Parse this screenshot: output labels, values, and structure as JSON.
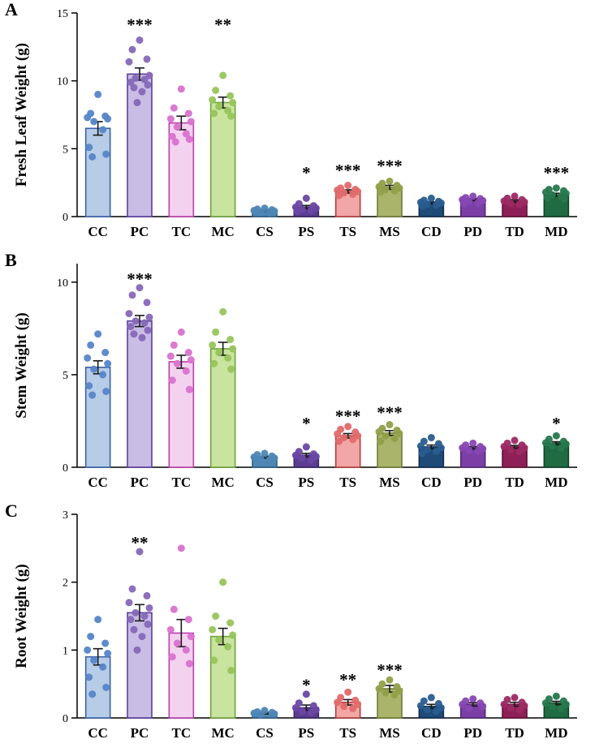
{
  "figure_colors": {
    "CC": {
      "fill": "#b7cce7",
      "stroke": "#3a62a7",
      "dot": "#5585c8"
    },
    "PC": {
      "fill": "#c9bce5",
      "stroke": "#5b3e9b",
      "dot": "#8668b8"
    },
    "TC": {
      "fill": "#f3d2ef",
      "stroke": "#bc3eae",
      "dot": "#d972cf"
    },
    "MC": {
      "fill": "#c9e49e",
      "stroke": "#6fa33c",
      "dot": "#97c45a"
    },
    "CS": {
      "fill": "#4e86b5",
      "stroke": "#2d5e85",
      "dot": "#4e86b5"
    },
    "PS": {
      "fill": "#5c3d91",
      "stroke": "#3b2766",
      "dot": "#6a48a5"
    },
    "TS": {
      "fill": "#f2a6a6",
      "stroke": "#b13c3c",
      "dot": "#e06a6a"
    },
    "MS": {
      "fill": "#aab56b",
      "stroke": "#707c36",
      "dot": "#91a04a"
    },
    "CD": {
      "fill": "#1e4b78",
      "stroke": "#132f52",
      "dot": "#2a5d8f"
    },
    "PD": {
      "fill": "#7b3fa6",
      "stroke": "#532a73",
      "dot": "#8747b3"
    },
    "TD": {
      "fill": "#8e2058",
      "stroke": "#5f1238",
      "dot": "#9c2a63"
    },
    "MD": {
      "fill": "#1f6b42",
      "stroke": "#12422a",
      "dot": "#27784d"
    }
  },
  "chart_data": [
    {
      "type": "bar",
      "panel_label": "A",
      "ylabel": "Fresh Leaf Weight (g)",
      "ylim": [
        0,
        15
      ],
      "ymax_axis": 15,
      "yticks": [
        0,
        5,
        10,
        15
      ],
      "categories": [
        "CC",
        "PC",
        "TC",
        "MC",
        "CS",
        "PS",
        "TS",
        "MS",
        "CD",
        "PD",
        "TD",
        "MD"
      ],
      "values": [
        6.5,
        10.5,
        6.9,
        8.4,
        0.45,
        0.7,
        1.85,
        2.15,
        1.0,
        1.25,
        1.15,
        1.6
      ],
      "errors": [
        0.5,
        0.45,
        0.5,
        0.4,
        0.06,
        0.12,
        0.12,
        0.15,
        0.08,
        0.08,
        0.1,
        0.12
      ],
      "significance": [
        "",
        "***",
        "",
        "**",
        "",
        "*",
        "***",
        "***",
        "",
        "",
        "",
        "***"
      ],
      "sig_y": [
        null,
        14.3,
        null,
        14.3,
        null,
        3.4,
        3.6,
        3.9,
        null,
        null,
        null,
        3.4
      ],
      "points": [
        [
          9.0,
          7.6,
          7.4,
          7.3,
          7.2,
          7.0,
          6.4,
          5.1,
          4.6,
          4.4
        ],
        [
          13.0,
          12.3,
          11.6,
          11.4,
          10.4,
          10.2,
          10.1,
          9.9,
          9.7,
          9.5,
          9.2,
          8.4
        ],
        [
          9.4,
          8.0,
          7.6,
          7.2,
          7.0,
          6.6,
          6.1,
          5.9,
          5.7,
          5.5
        ],
        [
          10.4,
          9.3,
          8.9,
          8.6,
          8.4,
          8.1,
          7.8,
          7.6,
          7.4
        ],
        [
          0.62,
          0.55,
          0.5,
          0.45,
          0.4,
          0.33,
          0.28
        ],
        [
          1.35,
          0.95,
          0.8,
          0.7,
          0.62,
          0.52,
          0.45,
          0.38
        ],
        [
          2.3,
          2.1,
          2.0,
          1.95,
          1.85,
          1.75,
          1.65,
          1.55
        ],
        [
          2.6,
          2.45,
          2.3,
          2.2,
          2.1,
          2.0,
          1.9,
          1.8
        ],
        [
          1.35,
          1.2,
          1.12,
          1.05,
          1.0,
          0.92,
          0.85,
          0.78
        ],
        [
          1.5,
          1.4,
          1.32,
          1.25,
          1.18,
          1.1,
          1.0,
          0.9
        ],
        [
          1.5,
          1.35,
          1.25,
          1.15,
          1.08,
          0.98,
          0.9
        ],
        [
          2.1,
          2.0,
          1.9,
          1.8,
          1.7,
          1.6,
          1.5,
          1.4,
          1.3
        ]
      ]
    },
    {
      "type": "bar",
      "panel_label": "B",
      "ylabel": "Stem Weight (g)",
      "ylim": [
        0,
        10
      ],
      "ymax_axis": 11,
      "yticks": [
        0,
        5,
        10
      ],
      "categories": [
        "CC",
        "PC",
        "TC",
        "MC",
        "CS",
        "PS",
        "TS",
        "MS",
        "CD",
        "PD",
        "TD",
        "MD"
      ],
      "values": [
        5.4,
        7.9,
        5.7,
        6.4,
        0.55,
        0.65,
        1.7,
        1.85,
        1.1,
        1.05,
        1.1,
        1.3
      ],
      "errors": [
        0.35,
        0.3,
        0.35,
        0.35,
        0.05,
        0.1,
        0.12,
        0.13,
        0.1,
        0.07,
        0.08,
        0.08
      ],
      "significance": [
        "",
        "***",
        "",
        "",
        "",
        "*",
        "***",
        "***",
        "",
        "",
        "",
        "*"
      ],
      "sig_y": [
        null,
        10.3,
        null,
        null,
        null,
        2.5,
        2.9,
        3.1,
        null,
        null,
        null,
        2.5
      ],
      "points": [
        [
          7.2,
          6.6,
          6.2,
          5.9,
          5.6,
          5.3,
          5.0,
          4.4,
          4.1,
          3.9
        ],
        [
          9.7,
          9.3,
          8.9,
          8.3,
          8.1,
          7.9,
          7.8,
          7.6,
          7.4,
          7.2,
          7.0
        ],
        [
          7.3,
          6.6,
          6.2,
          6.0,
          5.8,
          5.6,
          5.2,
          4.7,
          4.2
        ],
        [
          8.4,
          7.3,
          6.9,
          6.6,
          6.4,
          6.2,
          5.9,
          5.6,
          5.3
        ],
        [
          0.75,
          0.68,
          0.6,
          0.55,
          0.5,
          0.45,
          0.4
        ],
        [
          1.1,
          0.85,
          0.72,
          0.65,
          0.58,
          0.5,
          0.4
        ],
        [
          2.2,
          2.05,
          1.9,
          1.8,
          1.7,
          1.6,
          1.5,
          1.4
        ],
        [
          2.3,
          2.1,
          2.0,
          1.92,
          1.82,
          1.7,
          1.55,
          1.4
        ],
        [
          1.6,
          1.4,
          1.27,
          1.15,
          1.05,
          0.95,
          0.85,
          0.75
        ],
        [
          1.3,
          1.2,
          1.12,
          1.05,
          1.0,
          0.92,
          0.85
        ],
        [
          1.45,
          1.3,
          1.2,
          1.12,
          1.05,
          0.95,
          0.85
        ],
        [
          1.7,
          1.52,
          1.4,
          1.32,
          1.25,
          1.15,
          1.05
        ]
      ]
    },
    {
      "type": "bar",
      "panel_label": "C",
      "ylabel": "Root Weight (g)",
      "ylim": [
        0,
        3
      ],
      "ymax_axis": 3,
      "yticks": [
        0,
        1,
        2,
        3
      ],
      "categories": [
        "CC",
        "PC",
        "TC",
        "MC",
        "CS",
        "PS",
        "TS",
        "MS",
        "CD",
        "PD",
        "TD",
        "MD"
      ],
      "values": [
        0.9,
        1.55,
        1.25,
        1.2,
        0.07,
        0.15,
        0.23,
        0.43,
        0.17,
        0.2,
        0.2,
        0.22
      ],
      "errors": [
        0.12,
        0.12,
        0.2,
        0.12,
        0.012,
        0.04,
        0.04,
        0.05,
        0.03,
        0.025,
        0.03,
        0.025
      ],
      "significance": [
        "",
        "**",
        "",
        "",
        "",
        "*",
        "**",
        "***",
        "",
        "",
        "",
        ""
      ],
      "sig_y": [
        null,
        2.62,
        null,
        null,
        null,
        0.52,
        0.6,
        0.74,
        null,
        null,
        null,
        null
      ],
      "points": [
        [
          1.45,
          1.2,
          1.1,
          1.0,
          0.95,
          0.85,
          0.75,
          0.6,
          0.45,
          0.35
        ],
        [
          2.45,
          1.9,
          1.8,
          1.7,
          1.62,
          1.55,
          1.5,
          1.45,
          1.38,
          1.3,
          1.2,
          1.0
        ],
        [
          2.5,
          1.6,
          1.45,
          1.3,
          1.2,
          1.1,
          1.0,
          0.9,
          0.8
        ],
        [
          2.0,
          1.5,
          1.4,
          1.3,
          1.22,
          1.15,
          1.05,
          0.85,
          0.7
        ],
        [
          0.11,
          0.09,
          0.08,
          0.07,
          0.06,
          0.05
        ],
        [
          0.35,
          0.22,
          0.18,
          0.15,
          0.12,
          0.1,
          0.08
        ],
        [
          0.38,
          0.3,
          0.26,
          0.23,
          0.2,
          0.17,
          0.14
        ],
        [
          0.56,
          0.5,
          0.46,
          0.43,
          0.4,
          0.37,
          0.34
        ],
        [
          0.3,
          0.25,
          0.21,
          0.18,
          0.15,
          0.12,
          0.1
        ],
        [
          0.28,
          0.25,
          0.22,
          0.2,
          0.17,
          0.14
        ],
        [
          0.3,
          0.27,
          0.23,
          0.2,
          0.18,
          0.15,
          0.12
        ],
        [
          0.32,
          0.28,
          0.25,
          0.22,
          0.2,
          0.17,
          0.14
        ]
      ]
    }
  ]
}
